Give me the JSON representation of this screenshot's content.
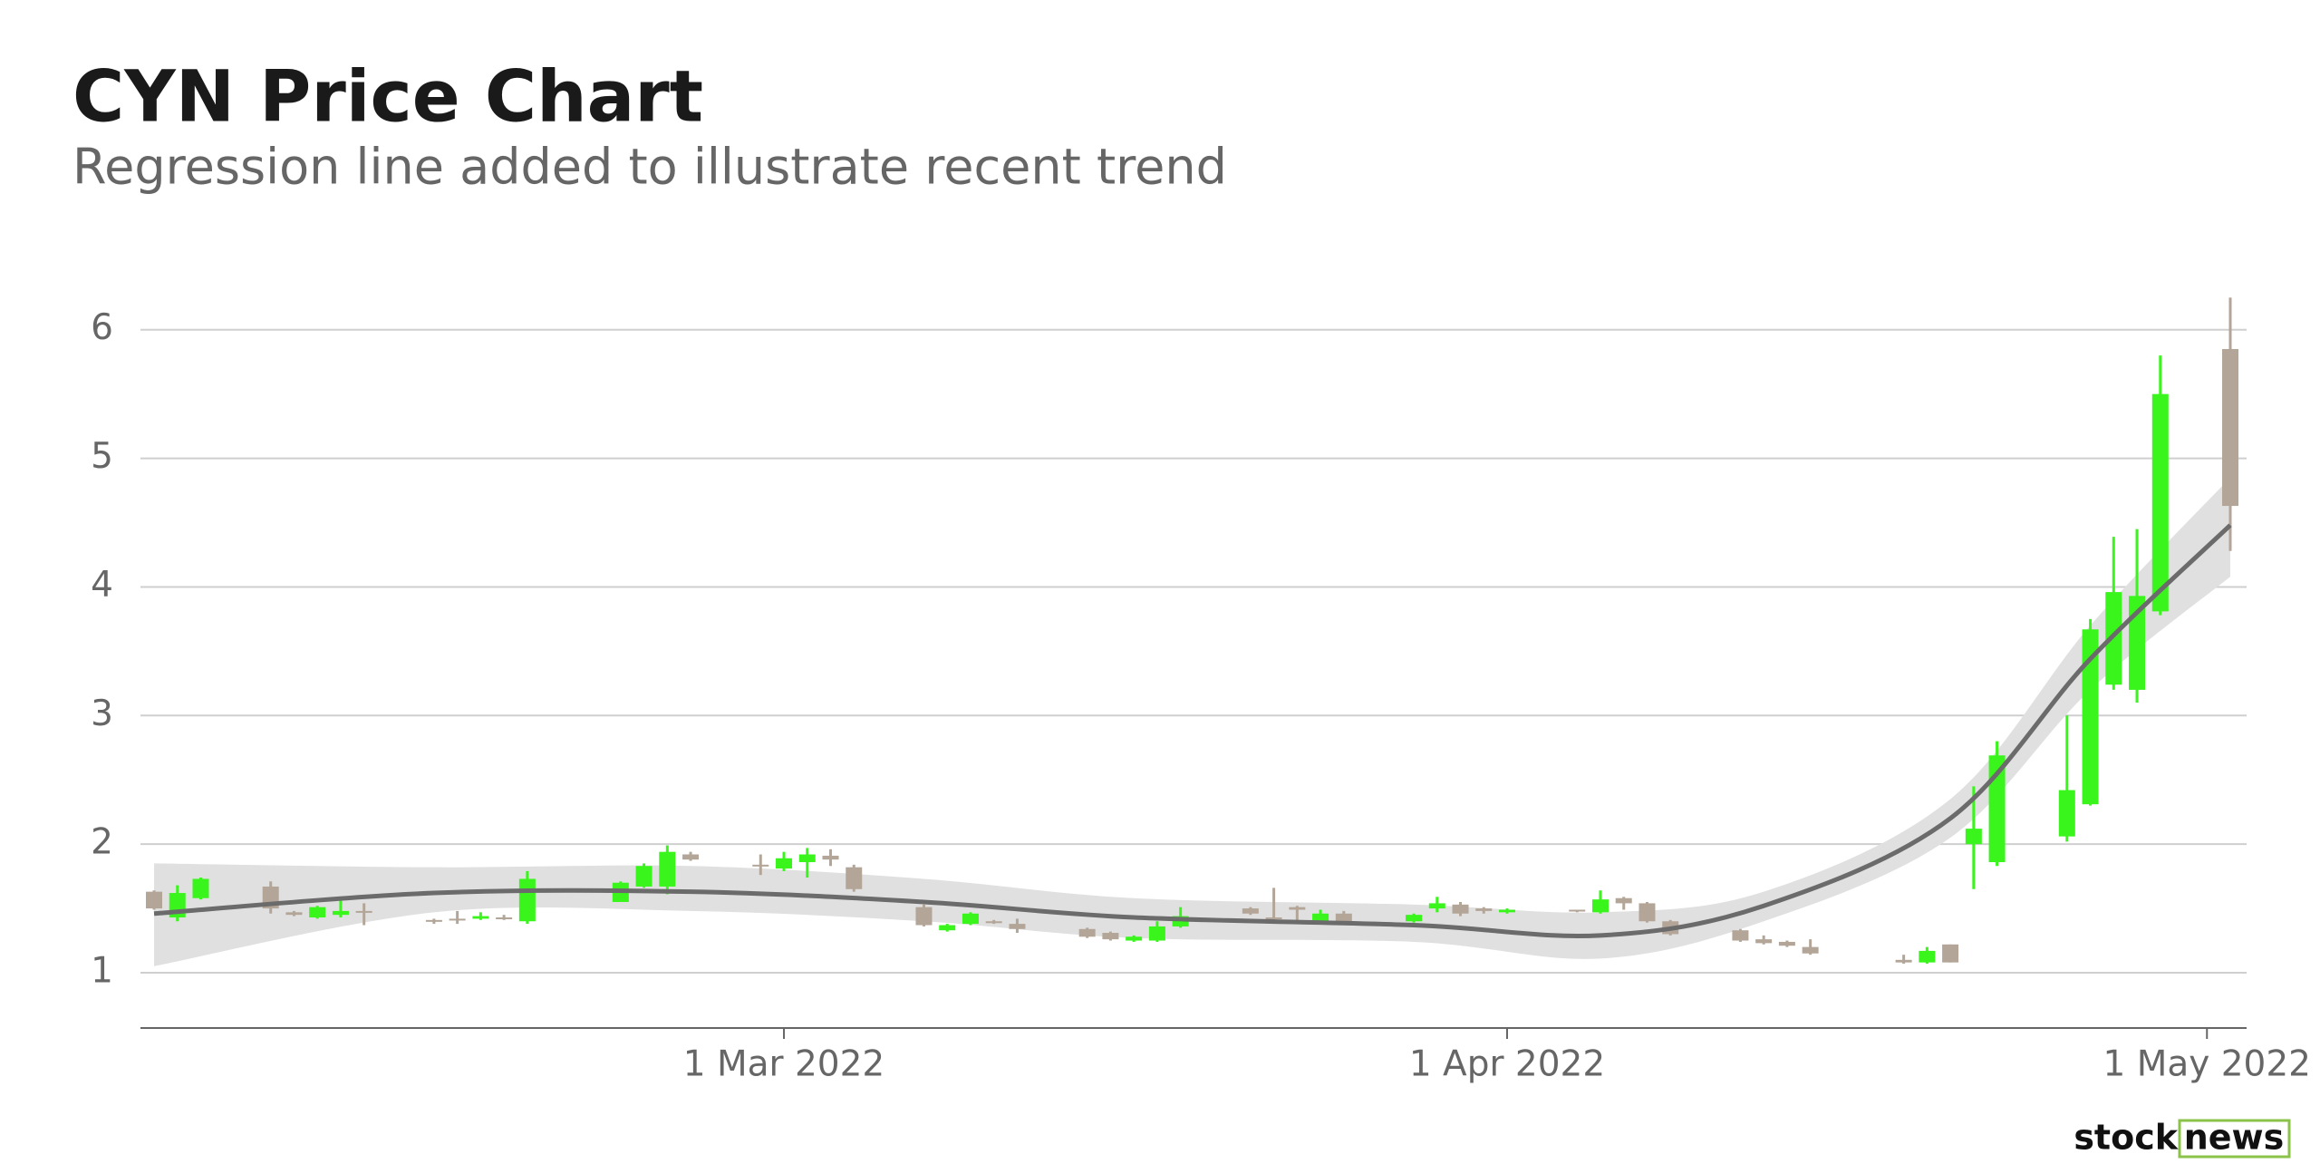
{
  "chart_data": {
    "type": "candlestick",
    "title": "CYN Price Chart",
    "subtitle": "Regression line added to illustrate recent trend",
    "x": [
      "2022-02-02",
      "2022-02-03",
      "2022-02-04",
      "2022-02-07",
      "2022-02-08",
      "2022-02-09",
      "2022-02-10",
      "2022-02-11",
      "2022-02-14",
      "2022-02-15",
      "2022-02-16",
      "2022-02-17",
      "2022-02-18",
      "2022-02-22",
      "2022-02-23",
      "2022-02-24",
      "2022-02-25",
      "2022-02-28",
      "2022-03-01",
      "2022-03-02",
      "2022-03-03",
      "2022-03-04",
      "2022-03-07",
      "2022-03-08",
      "2022-03-09",
      "2022-03-10",
      "2022-03-11",
      "2022-03-14",
      "2022-03-15",
      "2022-03-16",
      "2022-03-17",
      "2022-03-18",
      "2022-03-21",
      "2022-03-22",
      "2022-03-23",
      "2022-03-24",
      "2022-03-25",
      "2022-03-28",
      "2022-03-29",
      "2022-03-30",
      "2022-03-31",
      "2022-04-01",
      "2022-04-04",
      "2022-04-05",
      "2022-04-06",
      "2022-04-07",
      "2022-04-08",
      "2022-04-11",
      "2022-04-12",
      "2022-04-13",
      "2022-04-14",
      "2022-04-18",
      "2022-04-19",
      "2022-04-20",
      "2022-04-21",
      "2022-04-22",
      "2022-04-25",
      "2022-04-26",
      "2022-04-27",
      "2022-04-28",
      "2022-04-29",
      "2022-05-02"
    ],
    "open": [
      1.63,
      1.43,
      1.58,
      1.67,
      1.47,
      1.43,
      1.45,
      1.48,
      1.41,
      1.42,
      1.42,
      1.43,
      1.4,
      1.55,
      1.67,
      1.67,
      1.92,
      1.84,
      1.81,
      1.86,
      1.91,
      1.82,
      1.51,
      1.33,
      1.38,
      1.4,
      1.38,
      1.34,
      1.31,
      1.25,
      1.25,
      1.36,
      1.5,
      1.43,
      1.51,
      1.4,
      1.46,
      1.4,
      1.5,
      1.53,
      1.5,
      1.47,
      1.49,
      1.47,
      1.58,
      1.54,
      1.4,
      1.33,
      1.26,
      1.24,
      1.2,
      1.1,
      1.08,
      1.22,
      2.0,
      1.86,
      2.06,
      2.31,
      3.24,
      3.2,
      3.81,
      5.85
    ],
    "high": [
      1.64,
      1.68,
      1.74,
      1.71,
      1.48,
      1.52,
      1.56,
      1.54,
      1.42,
      1.48,
      1.47,
      1.45,
      1.79,
      1.71,
      1.85,
      1.99,
      1.94,
      1.92,
      1.94,
      1.97,
      1.96,
      1.84,
      1.53,
      1.38,
      1.47,
      1.41,
      1.42,
      1.35,
      1.32,
      1.29,
      1.4,
      1.51,
      1.51,
      1.66,
      1.52,
      1.49,
      1.48,
      1.46,
      1.59,
      1.55,
      1.51,
      1.5,
      1.49,
      1.64,
      1.59,
      1.55,
      1.41,
      1.34,
      1.29,
      1.25,
      1.26,
      1.14,
      1.2,
      1.22,
      2.45,
      2.8,
      3.0,
      3.75,
      4.39,
      4.45,
      5.8,
      6.25
    ],
    "low": [
      1.49,
      1.4,
      1.57,
      1.46,
      1.44,
      1.42,
      1.43,
      1.37,
      1.38,
      1.38,
      1.41,
      1.41,
      1.38,
      1.55,
      1.66,
      1.61,
      1.87,
      1.76,
      1.79,
      1.74,
      1.83,
      1.63,
      1.36,
      1.32,
      1.37,
      1.38,
      1.31,
      1.27,
      1.25,
      1.24,
      1.24,
      1.35,
      1.45,
      1.4,
      1.4,
      1.39,
      1.39,
      1.39,
      1.47,
      1.44,
      1.46,
      1.46,
      1.47,
      1.46,
      1.49,
      1.39,
      1.29,
      1.24,
      1.22,
      1.2,
      1.14,
      1.07,
      1.07,
      1.08,
      1.65,
      1.83,
      2.02,
      2.3,
      3.2,
      3.1,
      3.78,
      4.28
    ],
    "close": [
      1.5,
      1.62,
      1.73,
      1.5,
      1.45,
      1.51,
      1.48,
      1.47,
      1.4,
      1.41,
      1.44,
      1.42,
      1.73,
      1.7,
      1.83,
      1.94,
      1.88,
      1.83,
      1.89,
      1.92,
      1.88,
      1.65,
      1.37,
      1.37,
      1.46,
      1.39,
      1.34,
      1.28,
      1.26,
      1.28,
      1.36,
      1.44,
      1.46,
      1.42,
      1.49,
      1.46,
      1.4,
      1.45,
      1.54,
      1.46,
      1.48,
      1.49,
      1.48,
      1.57,
      1.54,
      1.4,
      1.3,
      1.25,
      1.23,
      1.21,
      1.15,
      1.08,
      1.17,
      1.08,
      2.12,
      2.69,
      2.42,
      3.67,
      3.96,
      3.93,
      5.5,
      4.63
    ],
    "up_color": "#39f51c",
    "down_color": "#b3a698",
    "trend": {
      "x": [
        "2022-02-02",
        "2022-02-14",
        "2022-02-25",
        "2022-03-07",
        "2022-03-16",
        "2022-03-28",
        "2022-04-05",
        "2022-04-12",
        "2022-04-20",
        "2022-04-26",
        "2022-05-02"
      ],
      "values": [
        1.46,
        1.62,
        1.63,
        1.55,
        1.43,
        1.37,
        1.29,
        1.52,
        2.2,
        3.44,
        4.48
      ],
      "lower": [
        1.05,
        1.47,
        1.48,
        1.4,
        1.27,
        1.24,
        1.11,
        1.4,
        2.05,
        3.2,
        4.08
      ],
      "upper": [
        1.85,
        1.82,
        1.83,
        1.73,
        1.58,
        1.53,
        1.47,
        1.63,
        2.35,
        3.7,
        4.85
      ],
      "color": "#6b6b6b",
      "band_color": "#e0e0e0"
    },
    "xlim": [
      "2022-02-02",
      "2022-05-02"
    ],
    "xticks": [
      {
        "value": "2022-03-01",
        "label": "1 Mar 2022"
      },
      {
        "value": "2022-04-01",
        "label": "1 Apr 2022"
      },
      {
        "value": "2022-05-01",
        "label": "1 May 2022"
      }
    ],
    "ylim": [
      0.57,
      6.4
    ],
    "yticks": [
      1,
      2,
      3,
      4,
      5,
      6
    ],
    "grid": true
  },
  "logo": {
    "left": "stock",
    "right": "news"
  }
}
